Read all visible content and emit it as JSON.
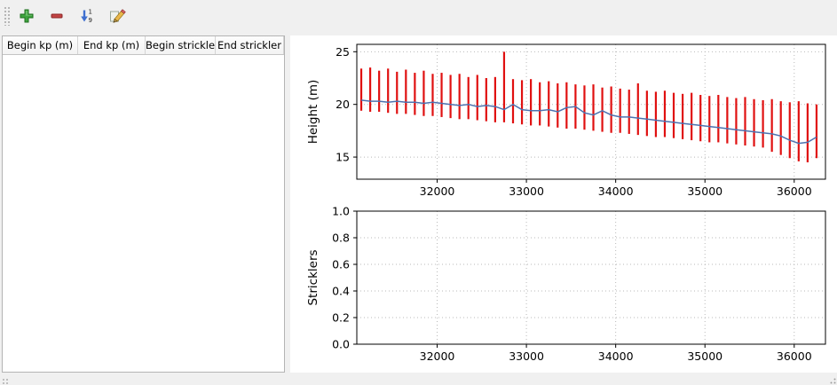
{
  "toolbar": {
    "buttons": [
      {
        "name": "add-row",
        "icon": "plus-icon"
      },
      {
        "name": "remove-row",
        "icon": "minus-icon"
      },
      {
        "name": "sort-rows",
        "icon": "sort-numeric-1-9-icon"
      },
      {
        "name": "edit-stricklers",
        "icon": "edit-pencil-icon"
      }
    ]
  },
  "table": {
    "headers": [
      "Begin kp (m)",
      "End kp (m)",
      "Begin strickler",
      "End strickler"
    ],
    "rows": []
  },
  "chart_data": [
    {
      "type": "line",
      "title": "",
      "xlabel": "",
      "ylabel": "Height (m)",
      "xlim": [
        31100,
        36350
      ],
      "ylim": [
        12.9,
        25.7
      ],
      "xticks": [
        32000,
        33000,
        34000,
        35000,
        36000
      ],
      "xticklabels": [
        "32000",
        "33000",
        "34000",
        "35000",
        "36000"
      ],
      "yticks": [
        15,
        20,
        25
      ],
      "yticklabels": [
        "15",
        "20",
        "25"
      ],
      "grid": true,
      "legend": false,
      "series": [
        {
          "name": "cross-section elevation range",
          "type": "vlines",
          "color": "#e01010",
          "points": [
            [
              31150,
              19.4,
              23.4
            ],
            [
              31250,
              19.3,
              23.5
            ],
            [
              31350,
              19.3,
              23.2
            ],
            [
              31450,
              19.2,
              23.4
            ],
            [
              31550,
              19.1,
              23.1
            ],
            [
              31650,
              19.1,
              23.3
            ],
            [
              31750,
              19.0,
              23.0
            ],
            [
              31850,
              18.9,
              23.2
            ],
            [
              31950,
              18.9,
              22.9
            ],
            [
              32050,
              18.8,
              23.0
            ],
            [
              32150,
              18.7,
              22.8
            ],
            [
              32250,
              18.6,
              22.9
            ],
            [
              32350,
              18.6,
              22.6
            ],
            [
              32450,
              18.5,
              22.8
            ],
            [
              32550,
              18.4,
              22.5
            ],
            [
              32650,
              18.3,
              22.6
            ],
            [
              32750,
              18.3,
              25.0
            ],
            [
              32850,
              18.2,
              22.4
            ],
            [
              32950,
              18.1,
              22.3
            ],
            [
              33050,
              18.0,
              22.4
            ],
            [
              33150,
              18.0,
              22.1
            ],
            [
              33250,
              17.9,
              22.2
            ],
            [
              33350,
              17.8,
              22.0
            ],
            [
              33450,
              17.7,
              22.1
            ],
            [
              33550,
              17.7,
              21.9
            ],
            [
              33650,
              17.6,
              21.8
            ],
            [
              33750,
              17.5,
              21.9
            ],
            [
              33850,
              17.4,
              21.6
            ],
            [
              33950,
              17.3,
              21.7
            ],
            [
              34050,
              17.3,
              21.5
            ],
            [
              34150,
              17.2,
              21.4
            ],
            [
              34250,
              17.1,
              22.0
            ],
            [
              34350,
              17.0,
              21.3
            ],
            [
              34450,
              16.9,
              21.2
            ],
            [
              34550,
              16.9,
              21.3
            ],
            [
              34650,
              16.8,
              21.1
            ],
            [
              34750,
              16.7,
              21.0
            ],
            [
              34850,
              16.6,
              21.1
            ],
            [
              34950,
              16.5,
              20.9
            ],
            [
              35050,
              16.4,
              20.8
            ],
            [
              35150,
              16.4,
              20.9
            ],
            [
              35250,
              16.3,
              20.7
            ],
            [
              35350,
              16.2,
              20.6
            ],
            [
              35450,
              16.1,
              20.7
            ],
            [
              35550,
              16.0,
              20.5
            ],
            [
              35650,
              15.9,
              20.4
            ],
            [
              35750,
              15.5,
              20.5
            ],
            [
              35850,
              15.2,
              20.3
            ],
            [
              35950,
              14.9,
              20.2
            ],
            [
              36050,
              14.6,
              20.3
            ],
            [
              36150,
              14.5,
              20.1
            ],
            [
              36250,
              14.9,
              20.0
            ]
          ]
        },
        {
          "name": "mean height",
          "type": "line",
          "color": "#4c72b0",
          "points": [
            [
              31150,
              20.4
            ],
            [
              31250,
              20.3
            ],
            [
              31350,
              20.3
            ],
            [
              31450,
              20.2
            ],
            [
              31550,
              20.3
            ],
            [
              31650,
              20.2
            ],
            [
              31750,
              20.2
            ],
            [
              31850,
              20.1
            ],
            [
              31950,
              20.2
            ],
            [
              32050,
              20.1
            ],
            [
              32150,
              20.0
            ],
            [
              32250,
              19.9
            ],
            [
              32350,
              20.0
            ],
            [
              32450,
              19.8
            ],
            [
              32550,
              19.9
            ],
            [
              32650,
              19.8
            ],
            [
              32750,
              19.5
            ],
            [
              32850,
              20.0
            ],
            [
              32950,
              19.5
            ],
            [
              33050,
              19.4
            ],
            [
              33150,
              19.4
            ],
            [
              33250,
              19.5
            ],
            [
              33350,
              19.3
            ],
            [
              33450,
              19.7
            ],
            [
              33550,
              19.8
            ],
            [
              33650,
              19.2
            ],
            [
              33750,
              19.0
            ],
            [
              33850,
              19.4
            ],
            [
              33950,
              19.0
            ],
            [
              34050,
              18.8
            ],
            [
              34150,
              18.8
            ],
            [
              34250,
              18.7
            ],
            [
              34350,
              18.6
            ],
            [
              34450,
              18.5
            ],
            [
              34550,
              18.4
            ],
            [
              34650,
              18.3
            ],
            [
              34750,
              18.2
            ],
            [
              34850,
              18.1
            ],
            [
              34950,
              18.0
            ],
            [
              35050,
              17.9
            ],
            [
              35150,
              17.8
            ],
            [
              35250,
              17.7
            ],
            [
              35350,
              17.6
            ],
            [
              35450,
              17.5
            ],
            [
              35550,
              17.4
            ],
            [
              35650,
              17.3
            ],
            [
              35750,
              17.2
            ],
            [
              35850,
              17.0
            ],
            [
              35950,
              16.6
            ],
            [
              36050,
              16.3
            ],
            [
              36150,
              16.4
            ],
            [
              36250,
              16.9
            ]
          ]
        }
      ]
    },
    {
      "type": "line",
      "title": "",
      "xlabel": "",
      "ylabel": "Stricklers",
      "xlim": [
        31100,
        36350
      ],
      "ylim": [
        0.0,
        1.0
      ],
      "xticks": [
        32000,
        33000,
        34000,
        35000,
        36000
      ],
      "xticklabels": [
        "32000",
        "33000",
        "34000",
        "35000",
        "36000"
      ],
      "yticks": [
        0.0,
        0.2,
        0.4,
        0.6,
        0.8,
        1.0
      ],
      "yticklabels": [
        "0.0",
        "0.2",
        "0.4",
        "0.6",
        "0.8",
        "1.0"
      ],
      "grid": true,
      "legend": false,
      "series": []
    }
  ]
}
